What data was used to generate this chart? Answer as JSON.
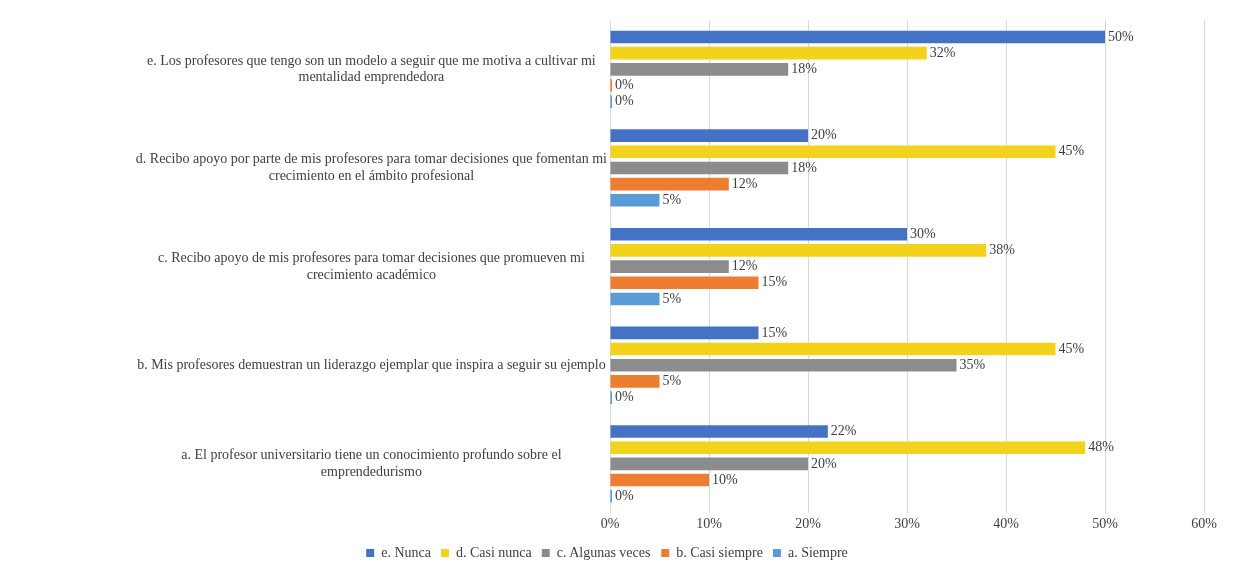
{
  "chart_data": {
    "type": "bar",
    "orientation": "horizontal",
    "categories": [
      "e. Los profesores que tengo son un modelo a seguir que me motiva a cultivar mi mentalidad emprendedora",
      "d. Recibo apoyo por parte de mis profesores para tomar decisiones que fomentan mi crecimiento en el ámbito profesional",
      "c. Recibo apoyo de mis profesores para tomar decisiones que promueven mi crecimiento académico",
      "b. Mis profesores demuestran un liderazgo ejemplar que inspira a seguir su ejemplo",
      "a. El profesor universitario tiene un conocimiento profundo sobre el emprendedurismo"
    ],
    "series": [
      {
        "name": "e. Nunca",
        "color": "#4472c4",
        "values": [
          50,
          20,
          30,
          15,
          22
        ],
        "value_labels": [
          "50%",
          "20%",
          "30%",
          "15%",
          "22%"
        ]
      },
      {
        "name": "d. Casi nunca",
        "color": "#f2d21b",
        "values": [
          32,
          45,
          38,
          45,
          48
        ],
        "value_labels": [
          "32%",
          "45%",
          "38%",
          "45%",
          "48%"
        ]
      },
      {
        "name": "c. Algunas veces",
        "color": "#8c8c8c",
        "values": [
          18,
          18,
          12,
          35,
          20
        ],
        "value_labels": [
          "18%",
          "18%",
          "12%",
          "35%",
          "20%"
        ]
      },
      {
        "name": "b. Casi siempre",
        "color": "#ed7d31",
        "values": [
          0,
          12,
          15,
          5,
          10
        ],
        "value_labels": [
          "0%",
          "12%",
          "15%",
          "5%",
          "10%"
        ]
      },
      {
        "name": "a. Siempre",
        "color": "#5b9bd5",
        "values": [
          0,
          5,
          5,
          0,
          0
        ],
        "value_labels": [
          "0%",
          "5%",
          "5%",
          "0%",
          "0%"
        ]
      }
    ],
    "xlim": [
      0,
      60
    ],
    "xticks": [
      {
        "value": 0,
        "label": "0%"
      },
      {
        "value": 10,
        "label": "10%"
      },
      {
        "value": 20,
        "label": "20%"
      },
      {
        "value": 30,
        "label": "30%"
      },
      {
        "value": 40,
        "label": "40%"
      },
      {
        "value": 50,
        "label": "50%"
      },
      {
        "value": 60,
        "label": "60%"
      }
    ],
    "grid": "x",
    "legend": "bottom"
  }
}
